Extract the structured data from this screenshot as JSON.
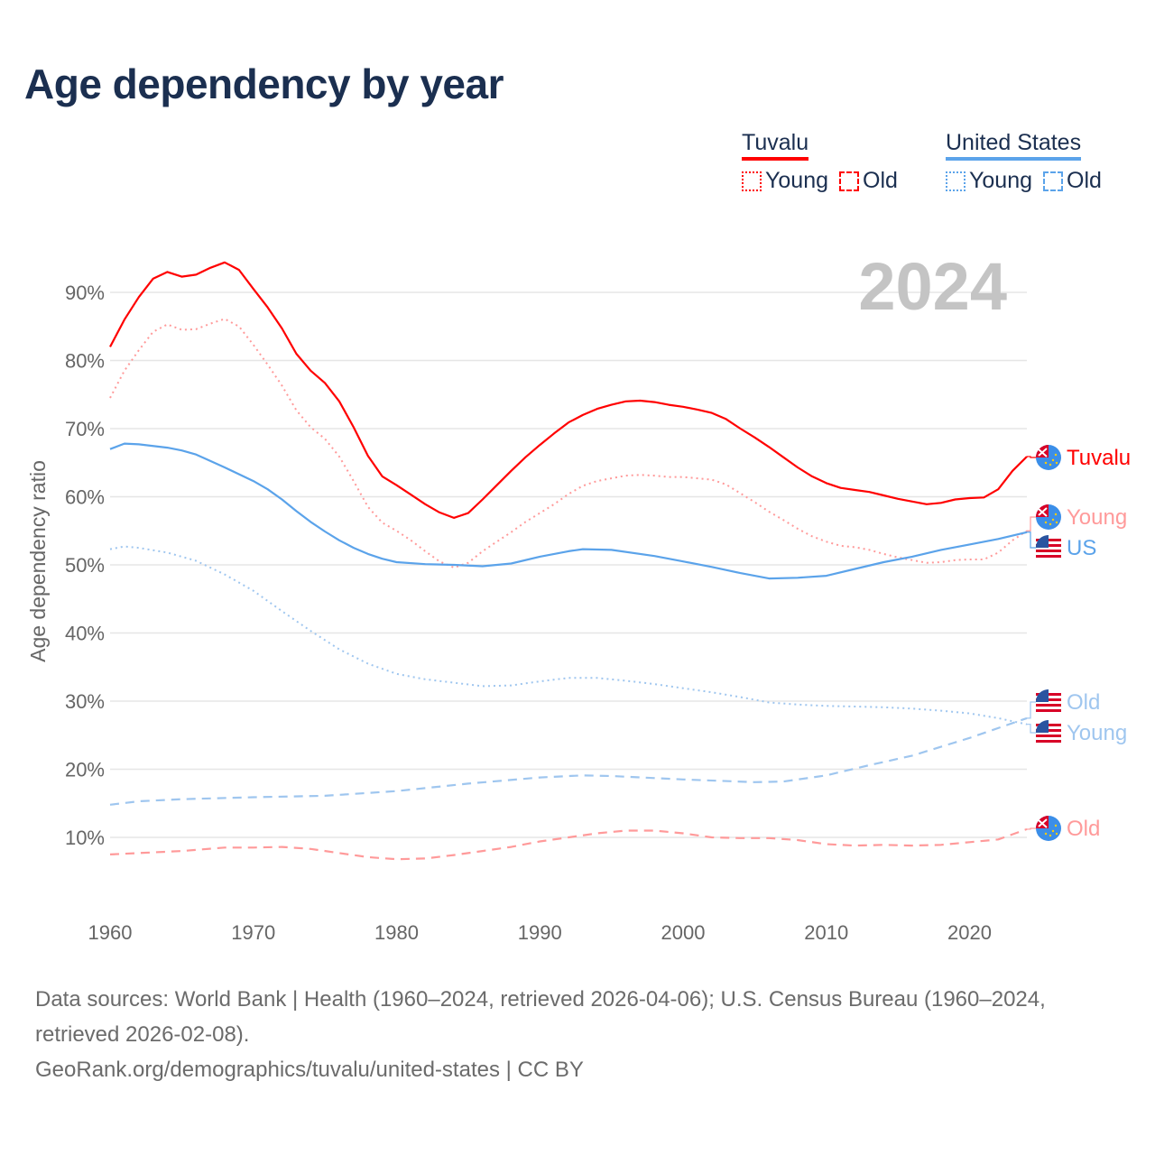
{
  "title": "Age dependency by year",
  "legend": {
    "groups": [
      {
        "name": "Tuvalu",
        "color": "#ff0000",
        "items": [
          {
            "label": "Young",
            "style": "dotted"
          },
          {
            "label": "Old",
            "style": "dashed"
          }
        ]
      },
      {
        "name": "United States",
        "color": "#5ba3ea",
        "items": [
          {
            "label": "Young",
            "style": "dotted"
          },
          {
            "label": "Old",
            "style": "dashed"
          }
        ]
      }
    ]
  },
  "year_label": "2024",
  "footer": {
    "sources": "Data sources: World Bank | Health (1960–2024, retrieved 2026-04-06); U.S. Census Bureau (1960–2024, retrieved 2026-02-08).",
    "credit": "GeoRank.org/demographics/tuvalu/united-states | CC BY"
  },
  "chart_data": {
    "type": "line",
    "title": "Age dependency by year",
    "xlabel": "",
    "ylabel": "Age dependency ratio",
    "xlim": [
      1960,
      2024
    ],
    "ylim": [
      0,
      95
    ],
    "x_ticks": [
      "1960",
      "1970",
      "1980",
      "1990",
      "2000",
      "2010",
      "2020"
    ],
    "y_ticks": [
      "10%",
      "20%",
      "30%",
      "40%",
      "50%",
      "60%",
      "70%",
      "80%",
      "90%"
    ],
    "grid": true,
    "series": [
      {
        "name": "Tuvalu",
        "end_label": "Tuvalu",
        "color": "#ff0000",
        "style": "solid",
        "flag": "tuvalu",
        "x": [
          1960,
          1961,
          1962,
          1963,
          1964,
          1965,
          1966,
          1967,
          1968,
          1969,
          1970,
          1971,
          1972,
          1973,
          1974,
          1975,
          1976,
          1977,
          1978,
          1979,
          1980,
          1981,
          1982,
          1983,
          1984,
          1985,
          1986,
          1987,
          1988,
          1989,
          1990,
          1991,
          1992,
          1993,
          1994,
          1995,
          1996,
          1997,
          1998,
          1999,
          2000,
          2001,
          2002,
          2003,
          2004,
          2005,
          2006,
          2007,
          2008,
          2009,
          2010,
          2011,
          2012,
          2013,
          2014,
          2015,
          2016,
          2017,
          2018,
          2019,
          2020,
          2021,
          2022,
          2023,
          2024
        ],
        "y": [
          82,
          86,
          89.3,
          92,
          93,
          92.3,
          92.6,
          93.6,
          94.4,
          93.3,
          90.5,
          87.8,
          84.7,
          81,
          78.5,
          76.7,
          74,
          70.2,
          66,
          63,
          61.7,
          60.3,
          58.9,
          57.7,
          56.9,
          57.6,
          59.6,
          61.7,
          63.8,
          65.8,
          67.6,
          69.3,
          70.9,
          72,
          72.9,
          73.5,
          74,
          74.1,
          73.9,
          73.5,
          73.2,
          72.8,
          72.3,
          71.4,
          70,
          68.7,
          67.3,
          65.8,
          64.3,
          63,
          62,
          61.3,
          61,
          60.7,
          60.2,
          59.7,
          59.3,
          58.9,
          59.1,
          59.6,
          59.8,
          59.9,
          61.1,
          63.8,
          65.9
        ]
      },
      {
        "name": "Tuvalu Young",
        "end_label": "Young",
        "color": "#ff9a9a",
        "style": "dotted",
        "flag": "tuvalu",
        "x": [
          1960,
          1961,
          1962,
          1963,
          1964,
          1965,
          1966,
          1967,
          1968,
          1969,
          1970,
          1971,
          1972,
          1973,
          1974,
          1975,
          1976,
          1977,
          1978,
          1979,
          1980,
          1981,
          1982,
          1983,
          1984,
          1985,
          1986,
          1987,
          1988,
          1989,
          1990,
          1991,
          1992,
          1993,
          1994,
          1995,
          1996,
          1997,
          1998,
          1999,
          2000,
          2001,
          2002,
          2003,
          2004,
          2005,
          2006,
          2007,
          2008,
          2009,
          2010,
          2011,
          2012,
          2013,
          2014,
          2015,
          2016,
          2017,
          2018,
          2019,
          2020,
          2021,
          2022,
          2023,
          2024
        ],
        "y": [
          74.5,
          78.5,
          81.5,
          84.2,
          85.3,
          84.5,
          84.6,
          85.4,
          86.1,
          85,
          82.3,
          79.4,
          76.3,
          72.7,
          70.2,
          68.5,
          65.9,
          62.3,
          58.5,
          56.2,
          55,
          53.6,
          52,
          50.5,
          49.6,
          50.3,
          52,
          53.4,
          54.8,
          56.3,
          57.6,
          58.9,
          60.4,
          61.6,
          62.3,
          62.7,
          63.1,
          63.2,
          63.1,
          62.9,
          62.9,
          62.7,
          62.5,
          61.8,
          60.5,
          59.2,
          57.8,
          56.6,
          55.3,
          54.2,
          53.4,
          52.8,
          52.6,
          52.2,
          51.6,
          51.1,
          50.7,
          50.3,
          50.4,
          50.7,
          50.8,
          50.8,
          51.8,
          53.6,
          55
        ]
      },
      {
        "name": "Tuvalu Old",
        "end_label": "Old",
        "color": "#ff9a9a",
        "style": "dashed",
        "flag": "tuvalu",
        "x": [
          1960,
          1965,
          1968,
          1970,
          1972,
          1974,
          1976,
          1978,
          1980,
          1982,
          1984,
          1986,
          1988,
          1990,
          1992,
          1994,
          1996,
          1998,
          2000,
          2002,
          2004,
          2006,
          2008,
          2010,
          2012,
          2014,
          2016,
          2018,
          2020,
          2022,
          2024
        ],
        "y": [
          7.5,
          8,
          8.5,
          8.5,
          8.6,
          8.3,
          7.7,
          7.1,
          6.8,
          6.9,
          7.4,
          8,
          8.6,
          9.4,
          10,
          10.6,
          11,
          11,
          10.6,
          10,
          9.9,
          9.9,
          9.6,
          9,
          8.8,
          8.9,
          8.8,
          8.9,
          9.3,
          9.7,
          11.2
        ]
      },
      {
        "name": "United States",
        "end_label": "US",
        "color": "#5ba3ea",
        "style": "solid",
        "flag": "us",
        "x": [
          1960,
          1961,
          1962,
          1964,
          1965,
          1966,
          1968,
          1970,
          1971,
          1972,
          1973,
          1974,
          1975,
          1976,
          1977,
          1978,
          1979,
          1980,
          1982,
          1984,
          1986,
          1988,
          1990,
          1992,
          1993,
          1995,
          1998,
          2000,
          2002,
          2004,
          2006,
          2008,
          2010,
          2012,
          2014,
          2016,
          2018,
          2020,
          2022,
          2024
        ],
        "y": [
          67,
          67.8,
          67.7,
          67.2,
          66.8,
          66.2,
          64.3,
          62.3,
          61.1,
          59.6,
          57.9,
          56.3,
          54.9,
          53.6,
          52.5,
          51.6,
          50.9,
          50.4,
          50.1,
          50,
          49.8,
          50.2,
          51.2,
          52,
          52.3,
          52.2,
          51.3,
          50.5,
          49.7,
          48.8,
          48,
          48.1,
          48.4,
          49.4,
          50.4,
          51.2,
          52.2,
          53,
          53.8,
          54.8
        ]
      },
      {
        "name": "United States Young",
        "end_label": "Young",
        "color": "#9fc6ef",
        "style": "dotted",
        "flag": "us",
        "x": [
          1960,
          1961,
          1962,
          1964,
          1966,
          1968,
          1970,
          1972,
          1974,
          1976,
          1978,
          1980,
          1982,
          1984,
          1986,
          1988,
          1990,
          1992,
          1994,
          1996,
          1998,
          2000,
          2002,
          2004,
          2006,
          2008,
          2010,
          2012,
          2014,
          2016,
          2018,
          2020,
          2022,
          2024
        ],
        "y": [
          52.3,
          52.7,
          52.5,
          51.8,
          50.6,
          48.6,
          46.2,
          43.2,
          40.3,
          37.6,
          35.5,
          34,
          33.2,
          32.7,
          32.2,
          32.3,
          32.9,
          33.4,
          33.4,
          33,
          32.5,
          31.9,
          31.3,
          30.6,
          29.8,
          29.5,
          29.3,
          29.2,
          29.1,
          28.9,
          28.6,
          28.2,
          27.5,
          26.6
        ]
      },
      {
        "name": "United States Old",
        "end_label": "Old",
        "color": "#9fc6ef",
        "style": "dashed",
        "flag": "us",
        "x": [
          1960,
          1962,
          1965,
          1970,
          1975,
          1980,
          1985,
          1990,
          1993,
          1995,
          2000,
          2005,
          2007,
          2010,
          2013,
          2016,
          2020,
          2024
        ],
        "y": [
          14.8,
          15.3,
          15.6,
          15.9,
          16.1,
          16.8,
          17.9,
          18.8,
          19.1,
          19,
          18.5,
          18.1,
          18.2,
          19.1,
          20.6,
          22,
          24.6,
          27.5
        ]
      }
    ]
  }
}
